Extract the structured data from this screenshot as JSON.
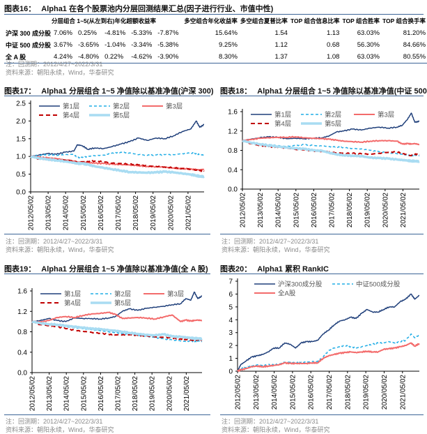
{
  "table16": {
    "label": "图表16：",
    "title": "Alpha1 在各个股票池内分层回测结果汇总(因子进行行业、市值中性)",
    "headers": [
      "分层组合 1~5(从左到右)年化超额收益率",
      "多空组合年化收益率",
      "多空组合夏普比率",
      "TOP 组合信息比率",
      "TOP 组合胜率",
      "TOP 组合换手率"
    ],
    "rows": [
      {
        "name": "沪深 300 成分股",
        "layers": [
          "7.06%",
          "0.25%",
          "-4.81%",
          "-5.33%",
          "-7.87%"
        ],
        "ls_return": "15.64%",
        "ls_sharpe": "1.54",
        "top_ir": "1.13",
        "top_winrate": "63.03%",
        "top_turnover": "81.20%"
      },
      {
        "name": "中证 500 成分股",
        "layers": [
          "3.67%",
          "-3.65%",
          "-1.04%",
          "-3.34%",
          "-5.38%"
        ],
        "ls_return": "9.25%",
        "ls_sharpe": "1.12",
        "top_ir": "0.68",
        "top_winrate": "56.30%",
        "top_turnover": "84.66%"
      },
      {
        "name": "全 A 股",
        "layers": [
          "4.24%",
          "-4.80%",
          "0.22%",
          "-4.62%",
          "-3.90%"
        ],
        "ls_return": "8.30%",
        "ls_sharpe": "1.37",
        "top_ir": "1.08",
        "top_winrate": "63.03%",
        "top_turnover": "80.55%"
      }
    ],
    "note": "注：回测期：2012/4/27~2022/3/31",
    "source": "资料来源：朝阳永续，Wind，华泰研究"
  },
  "colors": {
    "rule": "#3b6496",
    "layer1": "#1f3f7a",
    "layer2": "#22aee6",
    "layer3": "#f36b6b",
    "layer4": "#c00000",
    "layer5": "#a9dcf2"
  },
  "chart_data": [
    {
      "id": "fig17",
      "label": "图表17：",
      "title": "Alpha1 分层组合 1~5 净值除以基准净值(沪深 300)",
      "type": "line",
      "xlabel": "",
      "ylabel": "",
      "x_ticks": [
        "2012/05/02",
        "2013/05/02",
        "2014/05/02",
        "2015/05/02",
        "2016/05/02",
        "2017/05/02",
        "2018/05/02",
        "2019/05/02",
        "2020/05/02",
        "2021/05/02"
      ],
      "x_range": [
        2012.33,
        2022.25
      ],
      "ylim": [
        0,
        2.5
      ],
      "y_ticks": [
        "0.0",
        "0.5",
        "1.0",
        "1.5",
        "2.0",
        "2.5"
      ],
      "y_tick_values": [
        0,
        0.5,
        1.0,
        1.5,
        2.0,
        2.5
      ],
      "legend": "top",
      "x": [
        2012.33,
        2012.8,
        2013.3,
        2013.8,
        2014.3,
        2014.8,
        2015.0,
        2015.3,
        2015.6,
        2016.0,
        2016.5,
        2017.0,
        2017.5,
        2018.0,
        2018.5,
        2019.0,
        2019.5,
        2020.0,
        2020.5,
        2021.0,
        2021.5,
        2021.8,
        2022.0,
        2022.25
      ],
      "series": [
        {
          "name": "第1层",
          "style": "solid",
          "values": [
            1.0,
            1.04,
            1.08,
            1.06,
            1.12,
            1.15,
            1.33,
            1.3,
            1.2,
            1.24,
            1.22,
            1.28,
            1.35,
            1.42,
            1.52,
            1.45,
            1.52,
            1.5,
            1.58,
            1.7,
            1.78,
            2.0,
            1.82,
            1.9
          ]
        },
        {
          "name": "第2层",
          "style": "dashed",
          "values": [
            1.0,
            1.03,
            1.05,
            1.03,
            1.05,
            1.06,
            0.97,
            0.97,
            1.0,
            1.02,
            1.04,
            1.1,
            1.12,
            1.1,
            1.05,
            1.03,
            1.04,
            1.05,
            1.05,
            1.08,
            1.1,
            1.08,
            1.05,
            1.04
          ]
        },
        {
          "name": "第3层",
          "style": "solid",
          "values": [
            1.0,
            0.98,
            0.96,
            0.94,
            0.9,
            0.87,
            0.84,
            0.84,
            0.83,
            0.81,
            0.8,
            0.78,
            0.77,
            0.76,
            0.74,
            0.72,
            0.71,
            0.7,
            0.67,
            0.66,
            0.64,
            0.63,
            0.62,
            0.64
          ]
        },
        {
          "name": "第4层",
          "style": "dashed",
          "values": [
            1.0,
            0.93,
            0.91,
            0.9,
            0.89,
            0.87,
            0.83,
            0.85,
            0.86,
            0.87,
            0.85,
            0.81,
            0.8,
            0.78,
            0.76,
            0.73,
            0.72,
            0.7,
            0.68,
            0.66,
            0.64,
            0.61,
            0.6,
            0.58
          ]
        },
        {
          "name": "第5层",
          "style": "solid-thick",
          "values": [
            1.0,
            0.95,
            0.92,
            0.89,
            0.86,
            0.82,
            0.8,
            0.8,
            0.77,
            0.72,
            0.68,
            0.64,
            0.6,
            0.56,
            0.55,
            0.54,
            0.55,
            0.57,
            0.55,
            0.52,
            0.49,
            0.46,
            0.44,
            0.43
          ]
        }
      ]
    },
    {
      "id": "fig18",
      "label": "图表18：",
      "title": "Alpha1 分层组合 1~5 净值除以基准净值(中证 500)",
      "type": "line",
      "xlabel": "",
      "ylabel": "",
      "x_ticks": [
        "2012/05/02",
        "2013/05/02",
        "2014/05/02",
        "2015/05/02",
        "2016/05/02",
        "2017/05/02",
        "2018/05/02",
        "2019/05/02",
        "2020/05/02",
        "2021/05/02"
      ],
      "x_range": [
        2012.33,
        2022.25
      ],
      "ylim": [
        0,
        1.6
      ],
      "y_ticks": [
        "0.0",
        "0.4",
        "0.8",
        "1.2",
        "1.6"
      ],
      "y_tick_values": [
        0,
        0.4,
        0.8,
        1.2,
        1.6
      ],
      "legend": "top",
      "x": [
        2012.33,
        2012.8,
        2013.3,
        2013.8,
        2014.3,
        2014.8,
        2015.3,
        2015.8,
        2016.3,
        2016.8,
        2017.2,
        2017.6,
        2018.0,
        2018.5,
        2019.0,
        2019.5,
        2020.0,
        2020.5,
        2021.0,
        2021.3,
        2021.6,
        2021.8,
        2022.0,
        2022.25
      ],
      "series": [
        {
          "name": "第1层",
          "style": "solid",
          "values": [
            1.0,
            1.03,
            1.06,
            1.08,
            1.07,
            1.04,
            1.05,
            1.04,
            1.05,
            1.06,
            1.1,
            1.18,
            1.2,
            1.24,
            1.22,
            1.26,
            1.28,
            1.26,
            1.28,
            1.32,
            1.45,
            1.57,
            1.38,
            1.4
          ]
        },
        {
          "name": "第2层",
          "style": "dashed",
          "values": [
            1.0,
            0.96,
            0.94,
            0.92,
            0.9,
            0.88,
            0.9,
            0.92,
            0.9,
            0.89,
            0.88,
            0.87,
            0.86,
            0.84,
            0.83,
            0.8,
            0.77,
            0.75,
            0.73,
            0.72,
            0.7,
            0.69,
            0.7,
            0.69
          ]
        },
        {
          "name": "第3层",
          "style": "solid",
          "values": [
            1.0,
            1.02,
            1.05,
            1.06,
            1.07,
            1.07,
            1.08,
            1.06,
            1.05,
            1.04,
            1.03,
            1.01,
            0.99,
            0.98,
            0.97,
            0.99,
            1.0,
            1.0,
            0.99,
            0.93,
            0.94,
            0.93,
            0.94,
            0.92
          ]
        },
        {
          "name": "第4层",
          "style": "dashed",
          "values": [
            1.0,
            0.94,
            0.9,
            0.88,
            0.86,
            0.85,
            0.82,
            0.81,
            0.79,
            0.78,
            0.77,
            0.75,
            0.74,
            0.74,
            0.73,
            0.72,
            0.74,
            0.76,
            0.77,
            0.74,
            0.7,
            0.69,
            0.72,
            0.71
          ]
        },
        {
          "name": "第5层",
          "style": "solid-thick",
          "values": [
            1.0,
            0.96,
            0.93,
            0.9,
            0.88,
            0.86,
            0.84,
            0.83,
            0.8,
            0.79,
            0.75,
            0.72,
            0.7,
            0.69,
            0.68,
            0.65,
            0.64,
            0.63,
            0.61,
            0.6,
            0.59,
            0.58,
            0.58,
            0.57
          ]
        }
      ]
    },
    {
      "id": "fig19",
      "label": "图表19：",
      "title": "Alpha1 分层组合 1~5 净值除以基准净值(全 A 股)",
      "type": "line",
      "xlabel": "",
      "ylabel": "",
      "x_ticks": [
        "2012/05/02",
        "2013/05/02",
        "2014/05/02",
        "2015/05/02",
        "2016/05/02",
        "2017/05/02",
        "2018/05/02",
        "2019/05/02",
        "2020/05/02",
        "2021/05/02"
      ],
      "x_range": [
        2012.33,
        2022.25
      ],
      "ylim": [
        0,
        1.6
      ],
      "y_ticks": [
        "0.0",
        "0.4",
        "0.8",
        "1.2",
        "1.6"
      ],
      "y_tick_values": [
        0,
        0.4,
        0.8,
        1.2,
        1.6
      ],
      "legend": "top",
      "x": [
        2012.33,
        2012.8,
        2013.3,
        2013.8,
        2014.3,
        2014.8,
        2015.3,
        2015.8,
        2016.3,
        2016.8,
        2017.2,
        2017.6,
        2018.0,
        2018.5,
        2019.0,
        2019.5,
        2020.0,
        2020.5,
        2021.0,
        2021.3,
        2021.6,
        2021.8,
        2022.0,
        2022.25
      ],
      "series": [
        {
          "name": "第1层",
          "style": "solid",
          "values": [
            1.0,
            1.02,
            1.06,
            1.02,
            1.0,
            1.07,
            1.06,
            1.06,
            1.05,
            1.07,
            1.1,
            1.2,
            1.25,
            1.22,
            1.26,
            1.28,
            1.3,
            1.33,
            1.35,
            1.45,
            1.42,
            1.58,
            1.45,
            1.5
          ]
        },
        {
          "name": "第2层",
          "style": "dashed",
          "values": [
            1.0,
            0.97,
            0.95,
            0.93,
            0.9,
            0.88,
            0.86,
            0.84,
            0.82,
            0.8,
            0.78,
            0.77,
            0.75,
            0.73,
            0.71,
            0.69,
            0.66,
            0.64,
            0.62,
            0.61,
            0.62,
            0.61,
            0.62,
            0.61
          ]
        },
        {
          "name": "第3层",
          "style": "solid",
          "values": [
            1.0,
            0.99,
            1.02,
            1.08,
            1.1,
            1.08,
            1.12,
            1.15,
            1.16,
            1.18,
            1.14,
            1.06,
            1.07,
            1.08,
            1.07,
            1.05,
            1.09,
            1.13,
            1.0,
            1.03,
            1.01,
            1.02,
            1.03,
            1.02
          ]
        },
        {
          "name": "第4层",
          "style": "dashed",
          "values": [
            1.0,
            0.94,
            0.92,
            0.9,
            0.86,
            0.83,
            0.81,
            0.79,
            0.77,
            0.75,
            0.74,
            0.74,
            0.74,
            0.73,
            0.72,
            0.7,
            0.69,
            0.68,
            0.66,
            0.65,
            0.64,
            0.63,
            0.64,
            0.63
          ]
        },
        {
          "name": "第5层",
          "style": "solid-thick",
          "values": [
            1.0,
            0.97,
            0.95,
            0.94,
            0.92,
            0.9,
            0.88,
            0.86,
            0.85,
            0.83,
            0.82,
            0.8,
            0.78,
            0.76,
            0.74,
            0.73,
            0.75,
            0.71,
            0.7,
            0.69,
            0.68,
            0.67,
            0.67,
            0.66
          ]
        }
      ]
    },
    {
      "id": "fig20",
      "label": "图表20：",
      "title": "Alpha1 累积 RankIC",
      "type": "line",
      "xlabel": "",
      "ylabel": "",
      "x_ticks": [
        "2012/05/02",
        "2013/05/02",
        "2014/05/02",
        "2015/05/02",
        "2016/05/02",
        "2017/05/02",
        "2018/05/02",
        "2019/05/02",
        "2020/05/02",
        "2021/05/02"
      ],
      "x_range": [
        2012.33,
        2022.25
      ],
      "ylim": [
        0,
        7
      ],
      "y_ticks": [
        "0",
        "1",
        "2",
        "3",
        "4",
        "5",
        "6",
        "7"
      ],
      "y_tick_values": [
        0,
        1,
        2,
        3,
        4,
        5,
        6,
        7
      ],
      "legend": "top",
      "x": [
        2012.33,
        2012.5,
        2012.8,
        2013.1,
        2013.4,
        2013.7,
        2014.0,
        2014.3,
        2014.6,
        2014.9,
        2015.2,
        2015.5,
        2015.8,
        2016.1,
        2016.4,
        2016.7,
        2017.0,
        2017.3,
        2017.6,
        2017.9,
        2018.2,
        2018.5,
        2018.8,
        2019.1,
        2019.4,
        2019.7,
        2020.0,
        2020.3,
        2020.6,
        2020.9,
        2021.2,
        2021.5,
        2021.8,
        2022.0,
        2022.25
      ],
      "series": [
        {
          "name": "沪深300成分股",
          "style": "solid",
          "values": [
            0,
            0.5,
            0.8,
            1.1,
            1.2,
            1.3,
            1.5,
            1.8,
            1.8,
            2.2,
            2.1,
            1.8,
            2.2,
            2.3,
            2.3,
            2.4,
            2.9,
            3.2,
            3.6,
            3.9,
            4.0,
            4.2,
            4.1,
            4.5,
            4.8,
            4.6,
            4.6,
            4.8,
            5.0,
            5.0,
            5.4,
            5.6,
            6.0,
            5.6,
            5.9
          ]
        },
        {
          "name": "中证500成分股",
          "style": "dashed",
          "values": [
            0,
            0.2,
            0.3,
            0.4,
            0.5,
            0.45,
            0.5,
            0.5,
            0.55,
            0.7,
            0.7,
            0.65,
            0.7,
            0.7,
            0.75,
            0.75,
            1.1,
            1.6,
            1.8,
            1.9,
            2.0,
            1.9,
            1.8,
            1.9,
            2.0,
            2.1,
            2.2,
            2.2,
            2.3,
            2.2,
            2.3,
            2.4,
            2.9,
            2.6,
            2.8
          ]
        },
        {
          "name": "全A股",
          "style": "solid",
          "values": [
            0,
            0.1,
            0.2,
            0.35,
            0.4,
            0.35,
            0.4,
            0.45,
            0.5,
            0.65,
            0.6,
            0.6,
            0.6,
            0.6,
            0.65,
            0.65,
            1.0,
            1.2,
            1.3,
            1.4,
            1.45,
            1.5,
            1.45,
            1.5,
            1.55,
            1.5,
            1.5,
            1.7,
            1.75,
            1.8,
            1.9,
            2.0,
            2.2,
            1.95,
            2.15
          ]
        }
      ]
    }
  ],
  "charts_meta": [
    {
      "note": "注：回测期：2012/4/27~2022/3/31",
      "source": "资料来源：朝阳永续，Wind，华泰研究"
    },
    {
      "note": "注：回测期：2012/4/27~2022/3/31",
      "source": "资料来源：朝阳永续，Wind，华泰研究"
    },
    {
      "note": "注：回测期：2012/4/27~2022/3/31",
      "source": "资料来源：朝阳永续，Wind，华泰研究"
    },
    {
      "note": "注：回测期：2012/4/27~2022/3/31",
      "source": "资料来源：朝阳永续，Wind，华泰研究"
    }
  ]
}
